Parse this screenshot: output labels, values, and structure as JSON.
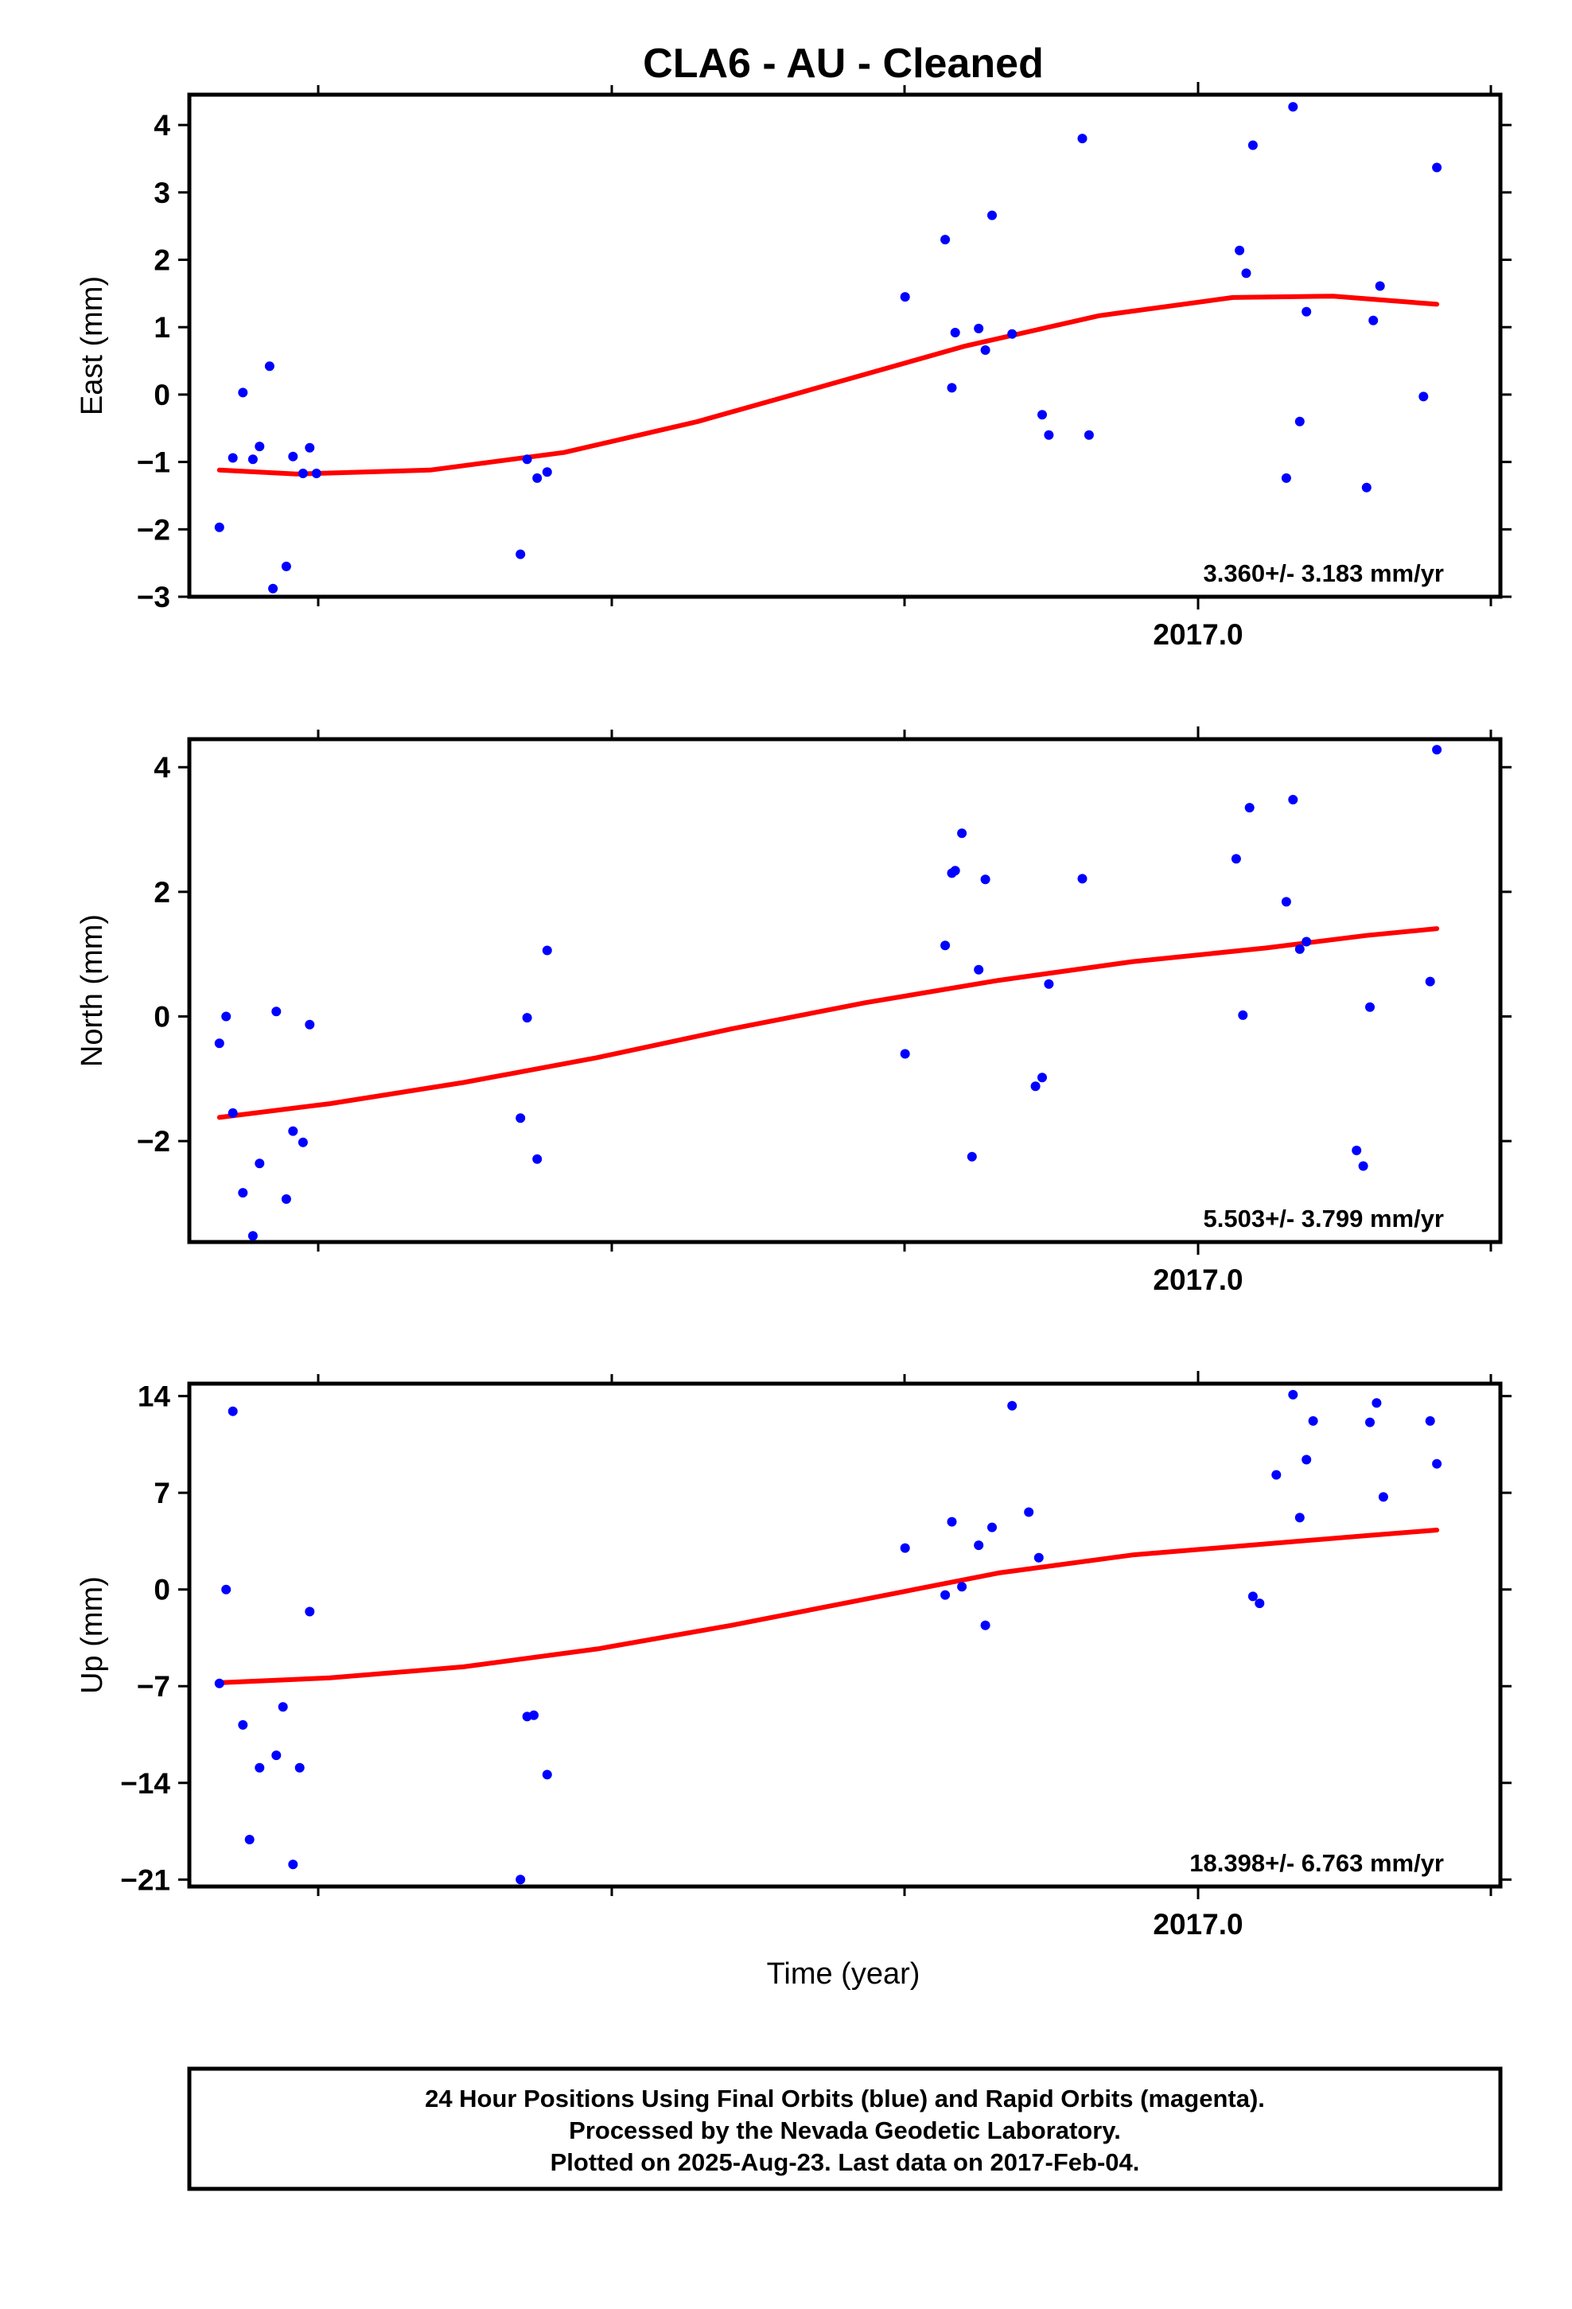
{
  "title": "CLA6  - AU - Cleaned",
  "xlabel": "Time (year)",
  "footer": [
    "24 Hour Positions Using Final Orbits (blue) and Rapid Orbits (magenta).",
    "Processed by the Nevada Geodetic Laboratory.",
    "Plotted on 2025-Aug-23. Last data on 2017-Feb-04."
  ],
  "colors": {
    "points": "#0000ff",
    "fit": "#ff0000",
    "frame": "#000000"
  },
  "chart_data": [
    {
      "type": "scatter",
      "ylabel": "East (mm)",
      "rate": "3.360+/- 3.183 mm/yr",
      "ylim": [
        -3,
        4.45
      ],
      "yticks": [
        4,
        3,
        2,
        1,
        0,
        -1,
        -2,
        -3
      ],
      "ytick_labels": [
        "4",
        "3",
        "2",
        "1",
        "0",
        "−1",
        "−2",
        "−3"
      ],
      "xlim": [
        2013.58,
        2017.5
      ],
      "xtick_label": "2017.0",
      "x": [
        2013.67,
        2013.71,
        2013.74,
        2013.77,
        2013.79,
        2013.82,
        2013.83,
        2013.87,
        2013.89,
        2013.92,
        2013.94,
        2013.96,
        2014.57,
        2014.59,
        2014.62,
        2014.65,
        2015.72,
        2015.84,
        2015.86,
        2015.87,
        2015.94,
        2015.96,
        2015.98,
        2016.04,
        2016.13,
        2016.15,
        2016.25,
        2016.27,
        2016.72,
        2016.74,
        2016.76,
        2016.86,
        2016.88,
        2016.9,
        2016.92,
        2017.1,
        2017.12,
        2017.14,
        2017.27,
        2017.31
      ],
      "y": [
        -1.97,
        -0.94,
        0.03,
        -0.96,
        -0.77,
        0.42,
        -2.88,
        -2.55,
        -0.92,
        -1.17,
        -0.79,
        -1.17,
        -2.37,
        -0.96,
        -1.24,
        -1.15,
        1.45,
        2.3,
        0.1,
        0.92,
        0.98,
        0.66,
        2.66,
        0.9,
        -0.3,
        -0.6,
        3.8,
        -0.6,
        2.14,
        1.8,
        3.7,
        -1.24,
        4.27,
        -0.4,
        1.23,
        -1.38,
        1.1,
        1.61,
        -0.03,
        3.37
      ],
      "fit": {
        "x": [
          2013.67,
          2013.9,
          2014.3,
          2014.7,
          2015.1,
          2015.5,
          2015.9,
          2016.3,
          2016.7,
          2017.0,
          2017.31
        ],
        "y": [
          -1.12,
          -1.18,
          -1.12,
          -0.86,
          -0.4,
          0.16,
          0.72,
          1.17,
          1.44,
          1.46,
          1.34
        ]
      }
    },
    {
      "type": "scatter",
      "ylabel": "North (mm)",
      "rate": "5.503+/- 3.799 mm/yr",
      "ylim": [
        -3.62,
        4.45
      ],
      "yticks": [
        4,
        2,
        0,
        -2
      ],
      "ytick_labels": [
        "4",
        "2",
        "0",
        "−2"
      ],
      "xlim": [
        2013.58,
        2017.5
      ],
      "xtick_label": "2017.0",
      "x": [
        2013.67,
        2013.69,
        2013.71,
        2013.74,
        2013.77,
        2013.79,
        2013.84,
        2013.87,
        2013.89,
        2013.92,
        2013.94,
        2014.57,
        2014.59,
        2014.62,
        2014.65,
        2015.72,
        2015.84,
        2015.86,
        2015.87,
        2015.89,
        2015.92,
        2015.94,
        2015.96,
        2016.11,
        2016.13,
        2016.15,
        2016.25,
        2016.71,
        2016.73,
        2016.75,
        2016.86,
        2016.88,
        2016.9,
        2016.92,
        2017.07,
        2017.09,
        2017.11,
        2017.29,
        2017.31
      ],
      "y": [
        -0.43,
        0,
        -1.55,
        -2.83,
        -3.52,
        -2.36,
        0.08,
        -2.93,
        -1.84,
        -2.02,
        -0.13,
        -1.63,
        -0.02,
        -2.29,
        1.06,
        -0.6,
        1.14,
        2.3,
        2.34,
        2.94,
        -2.25,
        0.75,
        2.2,
        -1.12,
        -0.98,
        0.52,
        2.21,
        2.53,
        0.02,
        3.35,
        1.84,
        3.48,
        1.08,
        1.2,
        -2.15,
        -2.4,
        0.15,
        0.56,
        4.28
      ],
      "fit": {
        "x": [
          2013.67,
          2014.0,
          2014.4,
          2014.8,
          2015.2,
          2015.6,
          2016.0,
          2016.4,
          2016.8,
          2017.1,
          2017.31
        ],
        "y": [
          -1.62,
          -1.4,
          -1.06,
          -0.66,
          -0.2,
          0.22,
          0.58,
          0.88,
          1.1,
          1.3,
          1.41
        ]
      }
    },
    {
      "type": "scatter",
      "ylabel": "Up (mm)",
      "rate": "18.398+/- 6.763 mm/yr",
      "ylim": [
        -21.5,
        14.9
      ],
      "yticks": [
        14,
        7,
        0,
        -7,
        -14,
        -21
      ],
      "ytick_labels": [
        "14",
        "7",
        "0",
        "−7",
        "−14",
        "−21"
      ],
      "xlim": [
        2013.58,
        2017.5
      ],
      "xtick_label": "2017.0",
      "x": [
        2013.67,
        2013.69,
        2013.71,
        2013.74,
        2013.76,
        2013.79,
        2013.84,
        2013.86,
        2013.89,
        2013.91,
        2013.94,
        2014.57,
        2014.59,
        2014.61,
        2014.65,
        2015.72,
        2015.84,
        2015.86,
        2015.89,
        2015.94,
        2015.96,
        2015.98,
        2016.04,
        2016.09,
        2016.12,
        2016.76,
        2016.78,
        2016.83,
        2016.88,
        2016.9,
        2016.92,
        2016.94,
        2017.11,
        2017.13,
        2017.15,
        2017.29,
        2017.31
      ],
      "y": [
        -6.8,
        0.0,
        12.9,
        -9.8,
        -18.1,
        -12.9,
        -12.0,
        -8.5,
        -19.9,
        -12.9,
        -1.6,
        -21.0,
        -9.2,
        -9.1,
        -13.4,
        3.0,
        -0.4,
        4.9,
        0.2,
        3.2,
        -2.6,
        4.5,
        13.3,
        5.6,
        2.3,
        -0.5,
        -1.0,
        8.3,
        14.1,
        5.2,
        9.4,
        12.2,
        12.1,
        13.5,
        6.7,
        12.2,
        9.1
      ],
      "fit": {
        "x": [
          2013.67,
          2014.0,
          2014.4,
          2014.8,
          2015.2,
          2015.6,
          2016.0,
          2016.4,
          2016.8,
          2017.1,
          2017.31
        ],
        "y": [
          -6.75,
          -6.4,
          -5.6,
          -4.3,
          -2.6,
          -0.7,
          1.2,
          2.5,
          3.3,
          3.9,
          4.3
        ]
      }
    }
  ]
}
